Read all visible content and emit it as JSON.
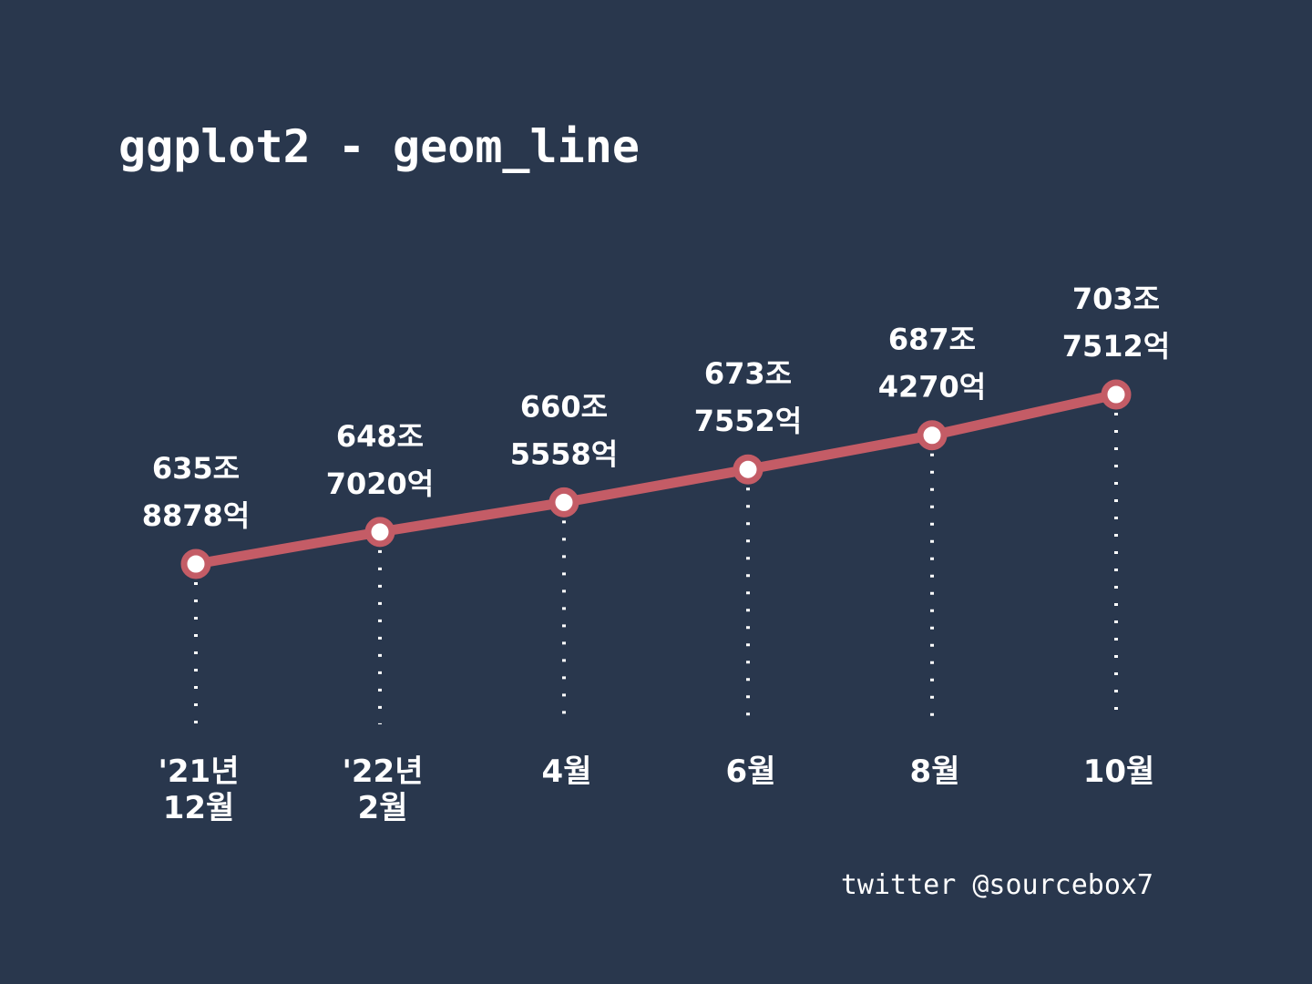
{
  "title": "ggplot2 - geom_line",
  "credit": "twitter @sourcebox7",
  "colors": {
    "background": "#29374d",
    "line": "#c45c66",
    "point_fill": "#ffffff",
    "guide": "#ffffff",
    "text": "#ffffff"
  },
  "chart_data": {
    "type": "line",
    "title": "ggplot2 - geom_line",
    "xlabel": "",
    "ylabel": "",
    "categories": [
      "'21년 12월",
      "'22년 2월",
      "4월",
      "6월",
      "8월",
      "10월"
    ],
    "category_lines": [
      [
        "'21년",
        "12월"
      ],
      [
        "'22년",
        "2월"
      ],
      [
        "4월"
      ],
      [
        "6월"
      ],
      [
        "8월"
      ],
      [
        "10월"
      ]
    ],
    "series": [
      {
        "values": [
          635.8878,
          648.702,
          660.5558,
          673.7552,
          687.427,
          703.7512
        ]
      }
    ],
    "data_labels": [
      [
        "635조",
        "8878억"
      ],
      [
        "648조",
        "7020억"
      ],
      [
        "660조",
        "5558억"
      ],
      [
        "673조",
        "7552억"
      ],
      [
        "687조",
        "4270억"
      ],
      [
        "703조",
        "7512억"
      ]
    ],
    "grid": false,
    "guides": "dotted vertical lines from each point down to the axis",
    "legend": "none"
  }
}
